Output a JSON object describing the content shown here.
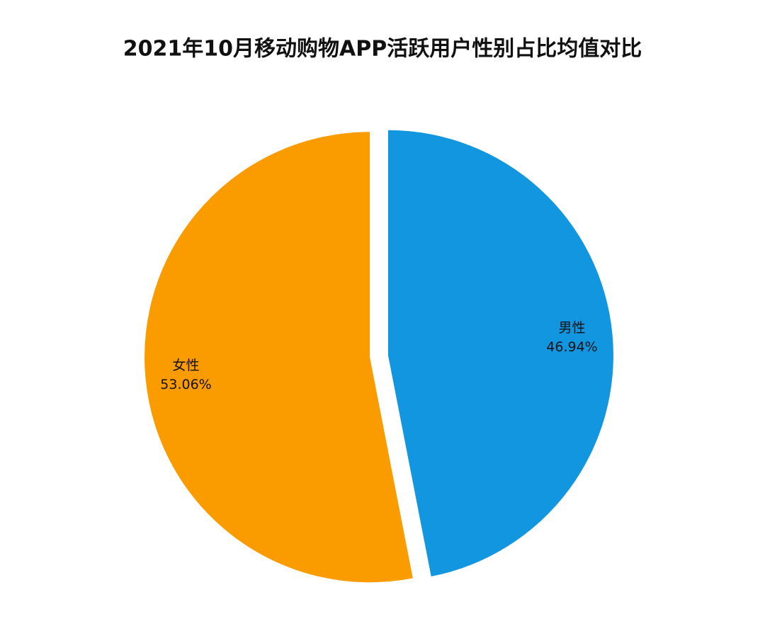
{
  "chart_data": {
    "type": "pie",
    "title": "2021年10月移动购物APP活跃用户性别占比均值对比",
    "categories": [
      "男性",
      "女性"
    ],
    "values": [
      46.94,
      53.06
    ],
    "value_labels": [
      "46.94%",
      "53.06%"
    ],
    "colors": [
      "#1296df",
      "#fa9c00"
    ]
  }
}
